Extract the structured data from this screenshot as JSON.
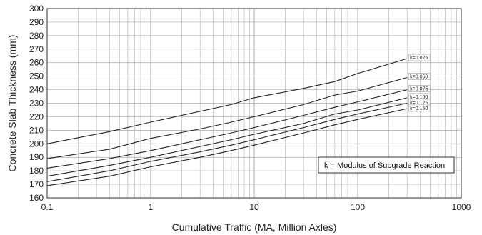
{
  "chart_data": {
    "type": "line",
    "title": "",
    "xlabel": "Cumulative Traffic (MA, Million Axles)",
    "ylabel": "Concrete Slab Thickness (mm)",
    "xscale": "log",
    "xlim": [
      0.1,
      1000
    ],
    "ylim": [
      160,
      300
    ],
    "x_ticks": [
      "0.1",
      "1",
      "10",
      "100",
      "1000"
    ],
    "y_ticks": [
      "160",
      "170",
      "180",
      "190",
      "200",
      "210",
      "220",
      "230",
      "240",
      "250",
      "260",
      "270",
      "280",
      "290",
      "300"
    ],
    "grid": "on",
    "annotation": "k = Modulus of Subgrade Reaction",
    "annotation_position": "bottom-right",
    "series": [
      {
        "name": "k=0.025",
        "x": [
          0.1,
          0.4,
          1,
          3,
          6,
          10,
          30,
          60,
          100,
          300
        ],
        "values": [
          200,
          209,
          216,
          224,
          229,
          234,
          241,
          246,
          252,
          263
        ]
      },
      {
        "name": "k=0.050",
        "x": [
          0.1,
          0.4,
          1,
          3,
          6,
          10,
          30,
          60,
          100,
          300
        ],
        "values": [
          189,
          196,
          204,
          211,
          216,
          220,
          229,
          236,
          239,
          249
        ]
      },
      {
        "name": "k=0.075",
        "x": [
          0.1,
          0.4,
          1,
          3,
          6,
          10,
          30,
          60,
          100,
          300
        ],
        "values": [
          182,
          189,
          195,
          203,
          208,
          212,
          221,
          227,
          231,
          240
        ]
      },
      {
        "name": "k=0.100",
        "x": [
          0.1,
          0.4,
          1,
          3,
          6,
          10,
          30,
          60,
          100,
          300
        ],
        "values": [
          176,
          184,
          190,
          198,
          203,
          207,
          215,
          222,
          225,
          234
        ]
      },
      {
        "name": "k=0.125",
        "x": [
          0.1,
          0.4,
          1,
          3,
          6,
          10,
          30,
          60,
          100,
          300
        ],
        "values": [
          172,
          180,
          187,
          194,
          199,
          203,
          212,
          218,
          222,
          230
        ]
      },
      {
        "name": "k=0.150",
        "x": [
          0.1,
          0.4,
          1,
          3,
          6,
          10,
          30,
          60,
          100,
          300
        ],
        "values": [
          169,
          176,
          183,
          190,
          195,
          199,
          208,
          214,
          218,
          226
        ]
      }
    ]
  }
}
